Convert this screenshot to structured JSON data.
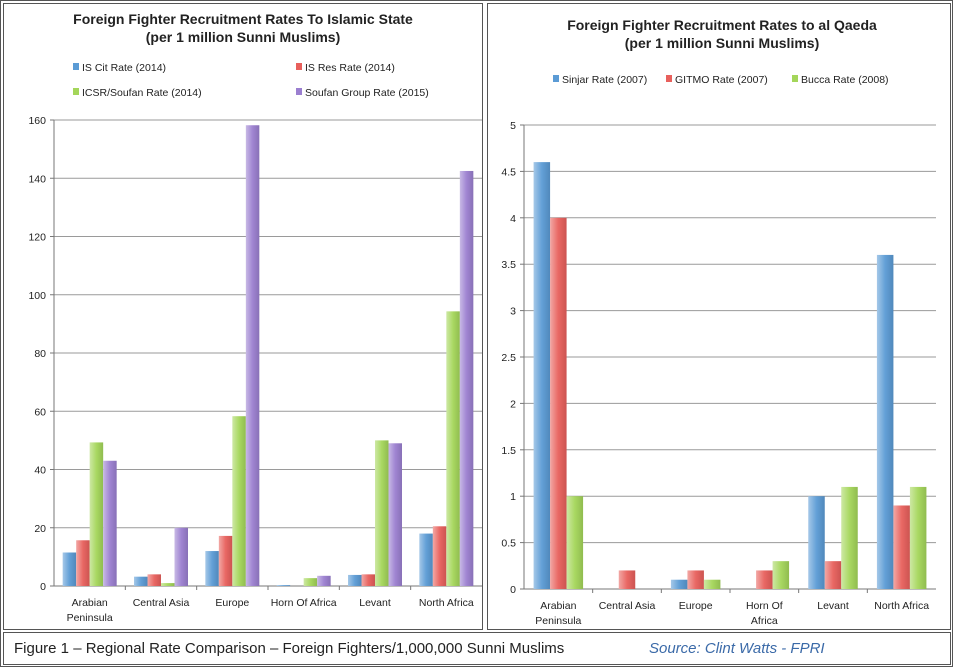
{
  "chart_data": [
    {
      "type": "bar",
      "title": "Foreign Fighter Recruitment Rates To Islamic State",
      "subtitle": "(per 1 million Sunni Muslims)",
      "categories": [
        [
          "Arabian",
          "Peninsula"
        ],
        [
          "Central Asia"
        ],
        [
          "Europe"
        ],
        [
          "Horn Of Africa"
        ],
        [
          "Levant"
        ],
        [
          "North Africa"
        ]
      ],
      "series": [
        {
          "name": "IS Cit Rate (2014)",
          "color": "#5b9bd5",
          "values": [
            11.5,
            3.2,
            12,
            0.3,
            3.8,
            18
          ]
        },
        {
          "name": "IS Res Rate (2014)",
          "color": "#e8605c",
          "values": [
            15.7,
            4,
            17.2,
            0,
            4,
            20.5
          ]
        },
        {
          "name": "ICSR/Soufan Rate (2014)",
          "color": "#a4d65a",
          "values": [
            49.3,
            1,
            58.3,
            2.7,
            50,
            94.3
          ]
        },
        {
          "name": "Soufan Group Rate (2015)",
          "color": "#9b7fd0",
          "values": [
            43,
            20,
            158.2,
            3.5,
            49,
            142.5
          ]
        }
      ],
      "ylim": [
        0,
        160
      ],
      "yticks": [
        0,
        20,
        40,
        60,
        80,
        100,
        120,
        140,
        160
      ],
      "ytick_labels": [
        "0",
        "20",
        "40",
        "60",
        "80",
        "100",
        "120",
        "140",
        "160"
      ],
      "xlabel": "",
      "ylabel": "",
      "grid": true
    },
    {
      "type": "bar",
      "title": "Foreign Fighter Recruitment Rates to al Qaeda",
      "subtitle": "(per 1 million Sunni Muslims)",
      "categories": [
        [
          "Arabian",
          "Peninsula"
        ],
        [
          "Central Asia"
        ],
        [
          "Europe"
        ],
        [
          "Horn Of",
          "Africa"
        ],
        [
          "Levant"
        ],
        [
          "North Africa"
        ]
      ],
      "series": [
        {
          "name": "Sinjar Rate (2007)",
          "color": "#5b9bd5",
          "values": [
            4.6,
            0,
            0.1,
            0,
            1,
            3.6
          ]
        },
        {
          "name": "GITMO Rate (2007)",
          "color": "#e8605c",
          "values": [
            4,
            0.2,
            0.2,
            0.2,
            0.3,
            0.9
          ]
        },
        {
          "name": "Bucca Rate (2008)",
          "color": "#a4d65a",
          "values": [
            1,
            0,
            0.1,
            0.3,
            1.1,
            1.1
          ]
        }
      ],
      "ylim": [
        0,
        5
      ],
      "yticks": [
        0,
        0.5,
        1,
        1.5,
        2,
        2.5,
        3,
        3.5,
        4,
        4.5,
        5
      ],
      "ytick_labels": [
        "0",
        "0.5",
        "1",
        "1.5",
        "2",
        "2.5",
        "3",
        "3.5",
        "4",
        "4.5",
        "5"
      ],
      "xlabel": "",
      "ylabel": "",
      "grid": true
    }
  ],
  "footer": {
    "caption": "Figure 1 – Regional Rate Comparison – Foreign Fighters/1,000,000 Sunni Muslims",
    "source": "Source: Clint Watts - FPRI"
  }
}
